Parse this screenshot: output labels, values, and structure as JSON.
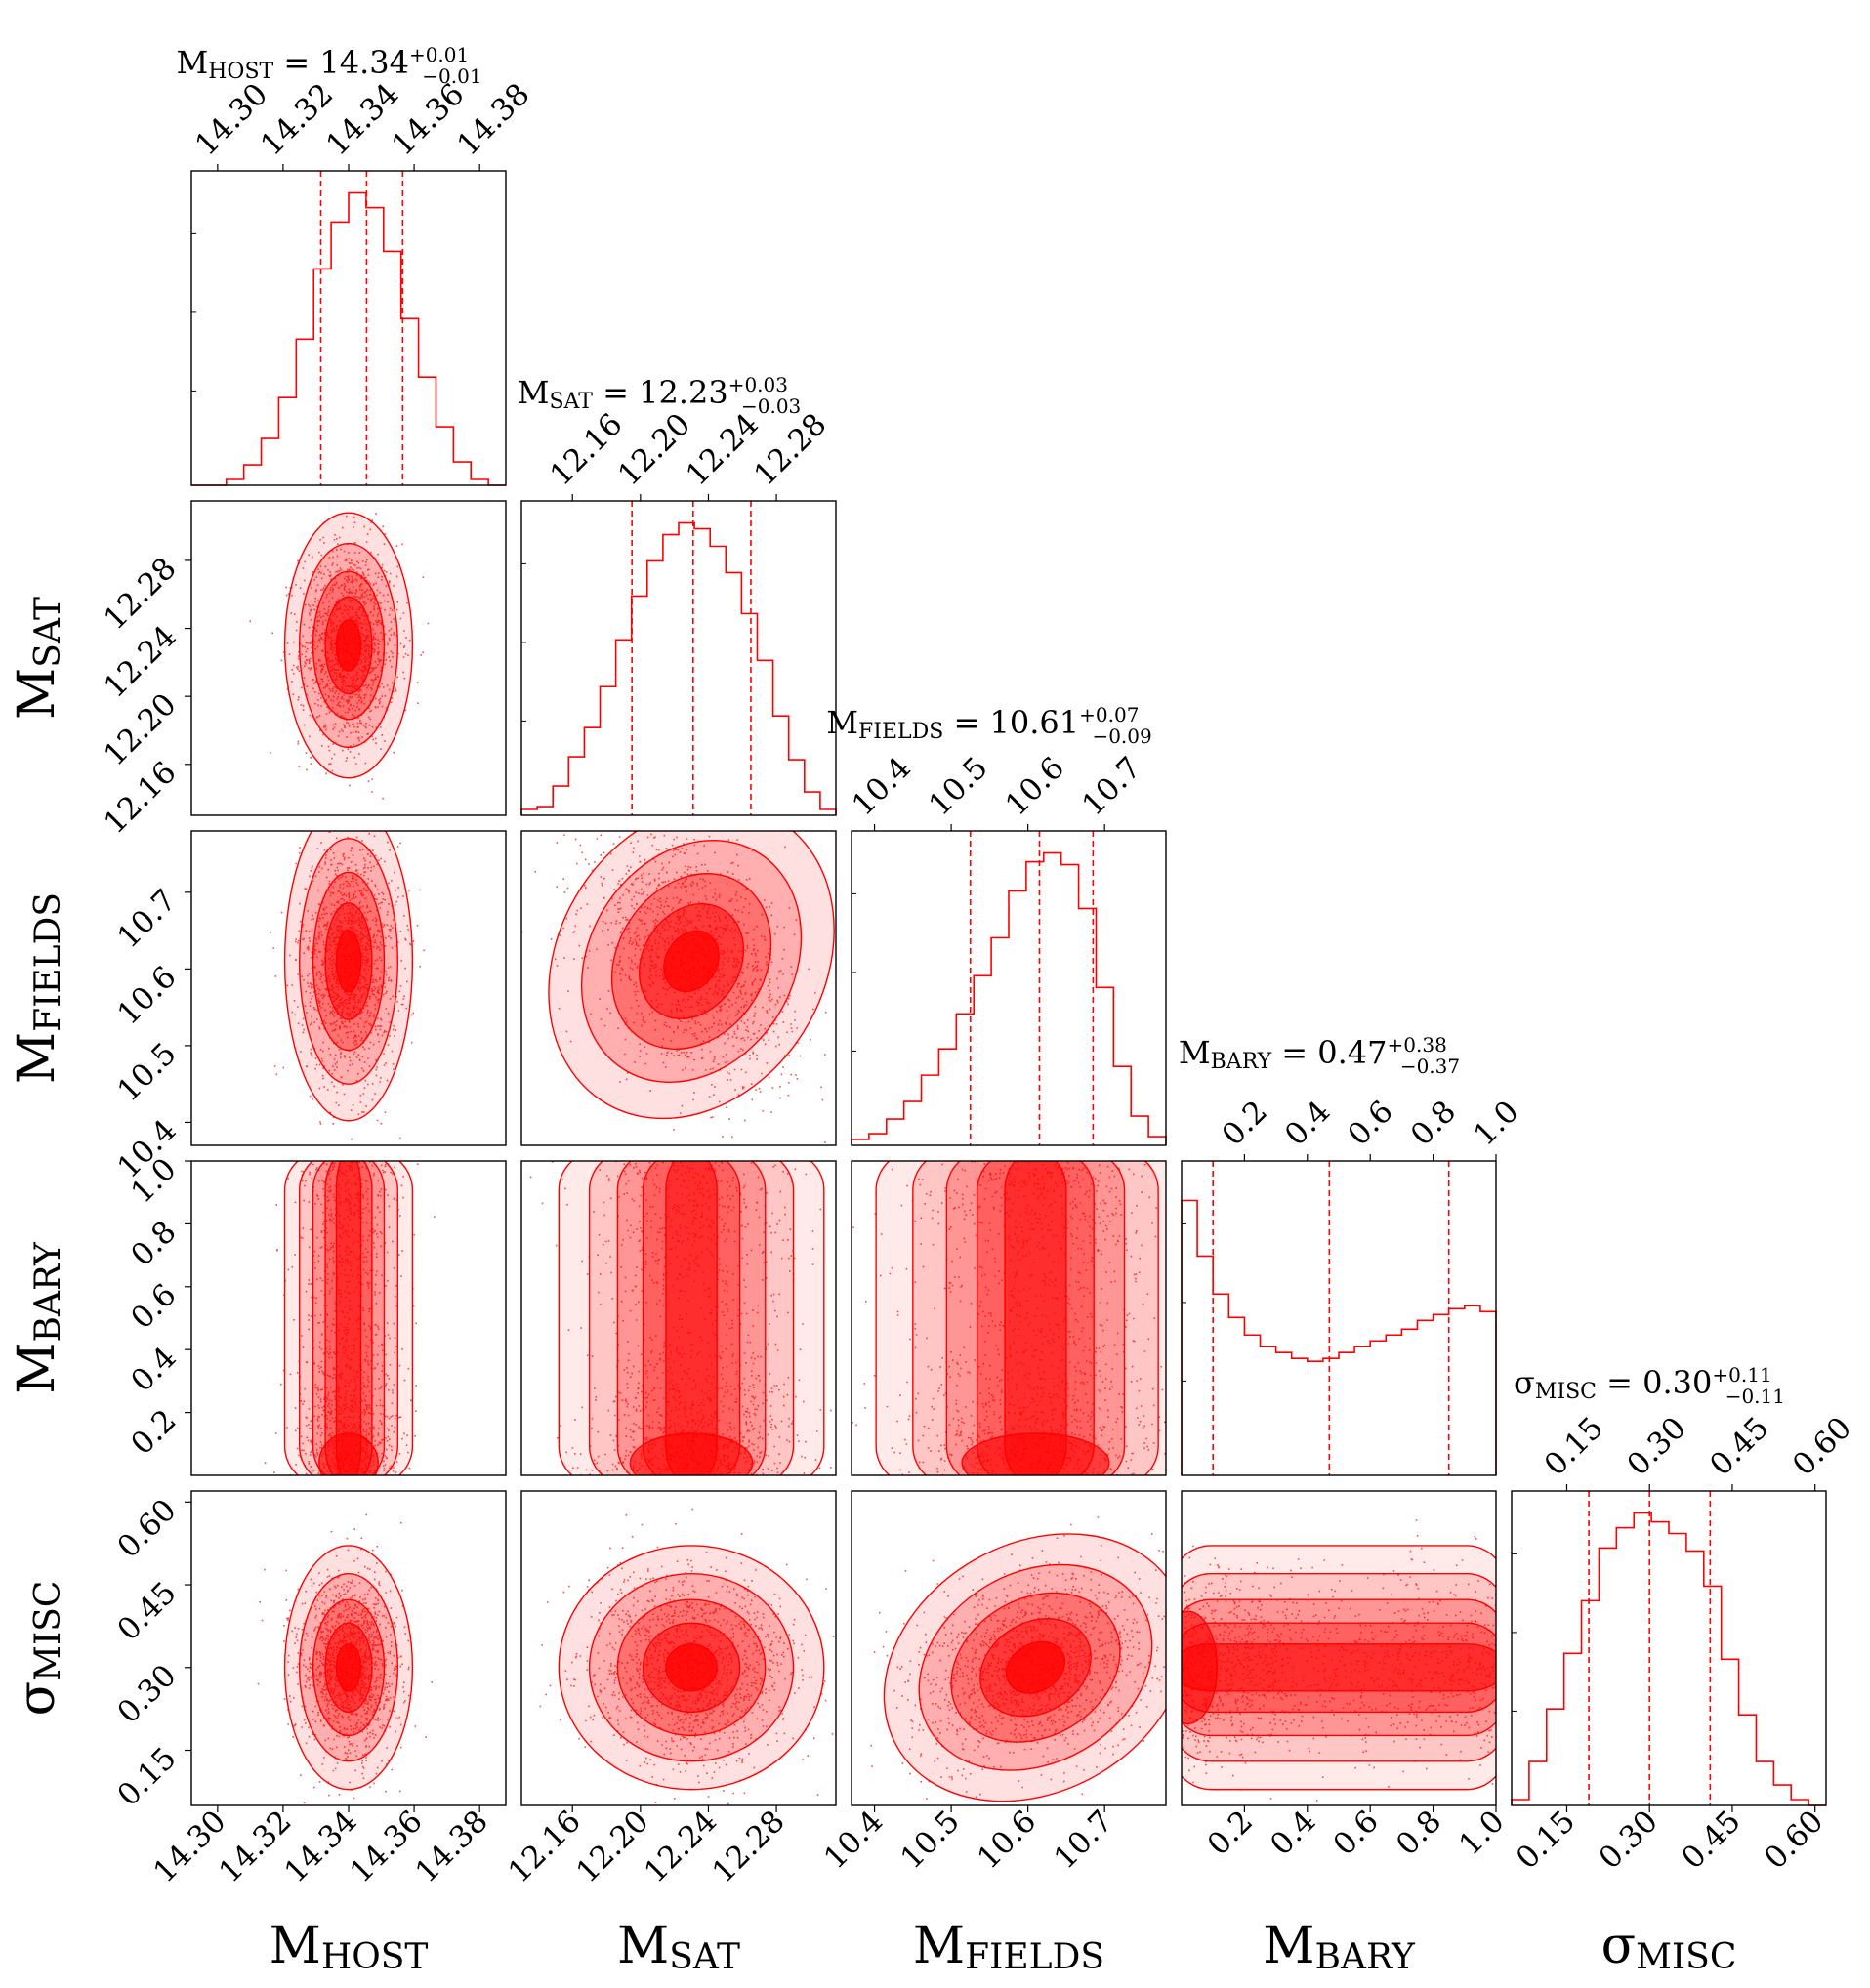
{
  "chart_data": {
    "type": "corner",
    "color": "#ff0000",
    "parameters": [
      {
        "name": "M",
        "sub": "HOST",
        "median": 14.34,
        "plus": 0.01,
        "minus": 0.01,
        "title": [
          "M",
          "HOST",
          " = 14.34",
          "+0.01",
          "−0.01"
        ],
        "range": [
          14.292,
          14.388
        ],
        "ticks": [
          14.3,
          14.32,
          14.34,
          14.36,
          14.38
        ],
        "tick_labels": [
          "14.30",
          "14.32",
          "14.34",
          "14.36",
          "14.38"
        ],
        "sd": 0.0075,
        "q": [
          14.3315,
          14.3455,
          14.3565
        ]
      },
      {
        "name": "M",
        "sub": "SAT",
        "median": 12.23,
        "plus": 0.03,
        "minus": 0.03,
        "title": [
          "M",
          "SAT",
          " = 12.23",
          "+0.03",
          "−0.03"
        ],
        "range": [
          12.13,
          12.315
        ],
        "ticks": [
          12.16,
          12.2,
          12.24,
          12.28
        ],
        "tick_labels": [
          "12.16",
          "12.20",
          "12.24",
          "12.28"
        ],
        "sd": 0.03,
        "q": [
          12.195,
          12.231,
          12.265
        ]
      },
      {
        "name": "M",
        "sub": "FIELDS",
        "median": 10.61,
        "plus": 0.07,
        "minus": 0.09,
        "title": [
          "M",
          "FIELDS",
          " = 10.61",
          "+0.07",
          "−0.09"
        ],
        "range": [
          10.37,
          10.78
        ],
        "ticks": [
          10.4,
          10.5,
          10.6,
          10.7
        ],
        "tick_labels": [
          "10.4",
          "10.5",
          "10.6",
          "10.7"
        ],
        "sd": 0.08,
        "q": [
          10.525,
          10.615,
          10.685
        ]
      },
      {
        "name": "M",
        "sub": "BARY",
        "median": 0.47,
        "plus": 0.38,
        "minus": 0.37,
        "title": [
          "M",
          "BARY",
          " = 0.47",
          "+0.38",
          "−0.37"
        ],
        "range": [
          0.0,
          1.0
        ],
        "ticks": [
          0.2,
          0.4,
          0.6,
          0.8,
          1.0
        ],
        "tick_labels": [
          "0.2",
          "0.4",
          "0.6",
          "0.8",
          "1.0"
        ],
        "sd": 0.29,
        "q": [
          0.1,
          0.47,
          0.85
        ]
      },
      {
        "name": "σ",
        "sub": "MISC",
        "median": 0.3,
        "plus": 0.11,
        "minus": 0.11,
        "title": [
          "σ",
          "MISC",
          " = 0.30",
          "+0.11",
          "−0.11"
        ],
        "range": [
          0.05,
          0.62
        ],
        "ticks": [
          0.15,
          0.3,
          0.45,
          0.6
        ],
        "tick_labels": [
          "0.15",
          "0.30",
          "0.45",
          "0.60"
        ],
        "sd": 0.085,
        "q": [
          0.19,
          0.3,
          0.41
        ]
      }
    ],
    "histograms": [
      [
        0.0,
        0.0,
        0.02,
        0.07,
        0.16,
        0.3,
        0.5,
        0.74,
        0.9,
        1.0,
        0.95,
        0.8,
        0.57,
        0.37,
        0.2,
        0.08,
        0.02,
        0.0
      ],
      [
        0.02,
        0.03,
        0.1,
        0.2,
        0.3,
        0.44,
        0.6,
        0.75,
        0.87,
        0.96,
        1.0,
        0.98,
        0.92,
        0.83,
        0.69,
        0.53,
        0.34,
        0.19,
        0.08,
        0.02
      ],
      [
        0.02,
        0.04,
        0.09,
        0.15,
        0.24,
        0.33,
        0.45,
        0.58,
        0.71,
        0.87,
        0.97,
        1.0,
        0.96,
        0.81,
        0.54,
        0.27,
        0.1,
        0.03
      ],
      [
        0.94,
        0.75,
        0.62,
        0.54,
        0.48,
        0.44,
        0.42,
        0.4,
        0.39,
        0.4,
        0.42,
        0.44,
        0.46,
        0.48,
        0.5,
        0.53,
        0.55,
        0.57,
        0.58,
        0.56
      ],
      [
        0.02,
        0.15,
        0.33,
        0.52,
        0.7,
        0.88,
        0.95,
        1.0,
        0.97,
        0.93,
        0.87,
        0.75,
        0.5,
        0.31,
        0.15,
        0.07,
        0.02,
        0.0
      ]
    ],
    "correlations": {
      "1-0": 0.0,
      "2-0": 0.0,
      "2-1": -0.4,
      "3-0": 0.35,
      "3-1": 0.0,
      "3-2": 0.0,
      "4-0": 0.0,
      "4-1": 0.0,
      "4-2": 0.25,
      "4-3": 0.0
    },
    "quantiles": [
      0.16,
      0.5,
      0.84
    ]
  }
}
